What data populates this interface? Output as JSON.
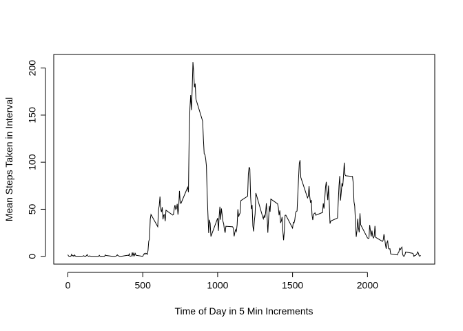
{
  "chart_data": {
    "type": "line",
    "xlabel": "Time of Day in 5 Min Increments",
    "ylabel": "Mean Steps Taken in Interval",
    "color": "#000000",
    "xlim": [
      -94.2,
      2449.2
    ],
    "ylim": [
      -8.25,
      214.4
    ],
    "xticks": [
      0,
      500,
      1000,
      1500,
      2000
    ],
    "yticks": [
      0,
      50,
      100,
      150,
      200
    ],
    "x": [
      0,
      5,
      10,
      15,
      20,
      25,
      30,
      35,
      40,
      45,
      50,
      55,
      100,
      105,
      110,
      115,
      120,
      125,
      130,
      135,
      140,
      145,
      150,
      155,
      200,
      205,
      210,
      215,
      220,
      225,
      230,
      235,
      240,
      245,
      250,
      255,
      300,
      305,
      310,
      315,
      320,
      325,
      330,
      335,
      340,
      345,
      350,
      355,
      400,
      405,
      410,
      415,
      420,
      425,
      430,
      435,
      440,
      445,
      450,
      455,
      500,
      505,
      510,
      515,
      520,
      525,
      530,
      535,
      540,
      545,
      550,
      555,
      600,
      605,
      610,
      615,
      620,
      625,
      630,
      635,
      640,
      645,
      650,
      655,
      700,
      705,
      710,
      715,
      720,
      725,
      730,
      735,
      740,
      745,
      750,
      755,
      800,
      805,
      810,
      815,
      820,
      825,
      830,
      835,
      840,
      845,
      850,
      855,
      900,
      905,
      910,
      915,
      920,
      925,
      930,
      935,
      940,
      945,
      950,
      955,
      1000,
      1005,
      1010,
      1015,
      1020,
      1025,
      1030,
      1035,
      1040,
      1045,
      1050,
      1055,
      1100,
      1105,
      1110,
      1115,
      1120,
      1125,
      1130,
      1135,
      1140,
      1145,
      1150,
      1155,
      1200,
      1205,
      1210,
      1215,
      1220,
      1225,
      1230,
      1235,
      1240,
      1245,
      1250,
      1255,
      1300,
      1305,
      1310,
      1315,
      1320,
      1325,
      1330,
      1335,
      1340,
      1345,
      1350,
      1355,
      1400,
      1405,
      1410,
      1415,
      1420,
      1425,
      1430,
      1435,
      1440,
      1445,
      1450,
      1455,
      1500,
      1505,
      1510,
      1515,
      1520,
      1525,
      1530,
      1535,
      1540,
      1545,
      1550,
      1555,
      1600,
      1605,
      1610,
      1615,
      1620,
      1625,
      1630,
      1635,
      1640,
      1645,
      1650,
      1655,
      1700,
      1705,
      1710,
      1715,
      1720,
      1725,
      1730,
      1735,
      1740,
      1745,
      1750,
      1755,
      1800,
      1805,
      1810,
      1815,
      1820,
      1825,
      1830,
      1835,
      1840,
      1845,
      1850,
      1855,
      1900,
      1905,
      1910,
      1915,
      1920,
      1925,
      1930,
      1935,
      1940,
      1945,
      1950,
      1955,
      2000,
      2005,
      2010,
      2015,
      2020,
      2025,
      2030,
      2035,
      2040,
      2045,
      2050,
      2055,
      2100,
      2105,
      2110,
      2115,
      2120,
      2125,
      2130,
      2135,
      2140,
      2145,
      2150,
      2155,
      2200,
      2205,
      2210,
      2215,
      2220,
      2225,
      2230,
      2235,
      2240,
      2245,
      2250,
      2255,
      2300,
      2305,
      2310,
      2315,
      2320,
      2325,
      2330,
      2335,
      2340,
      2345,
      2350,
      2355
    ],
    "values": [
      1.7,
      0.3,
      0.1,
      0.2,
      0.1,
      2.1,
      0.5,
      0.9,
      0,
      1.5,
      0.3,
      0.1,
      0.3,
      0.7,
      0.2,
      0.3,
      0,
      1.1,
      1.8,
      0.2,
      0.2,
      0.4,
      0.3,
      0,
      0,
      0,
      1.1,
      0,
      0,
      0.1,
      0,
      0.2,
      0,
      0,
      1.5,
      0.9,
      0,
      0,
      0,
      0,
      0.2,
      0.6,
      1.6,
      0.6,
      0.5,
      0.1,
      0,
      0,
      1.2,
      0.9,
      2.6,
      0,
      0.3,
      0.4,
      4.1,
      0.7,
      3.5,
      0.8,
      3.1,
      1.1,
      0,
      1.6,
      3,
      2.2,
      3.3,
      3,
      2.1,
      6,
      16,
      18.3,
      39.5,
      44.5,
      31.5,
      49.3,
      53.8,
      63.5,
      50,
      47.1,
      52.2,
      39.3,
      44,
      44.2,
      37.4,
      49,
      43.8,
      44.4,
      50.5,
      54.5,
      49.9,
      51,
      55.7,
      44.3,
      52.3,
      69.5,
      57.8,
      56.2,
      73.4,
      68.2,
      129.4,
      157.5,
      171.2,
      155.4,
      177.3,
      206.2,
      195.9,
      179.6,
      183.4,
      167,
      143.5,
      124,
      109.1,
      108.1,
      103.7,
      95.96,
      66.2,
      45.2,
      24.8,
      38.8,
      35,
      21.1,
      40.6,
      26.98,
      42.4,
      52.7,
      38.9,
      50.8,
      44.3,
      37.4,
      34.7,
      28.3,
      25.1,
      31.9,
      31.4,
      29.7,
      21.3,
      25.5,
      28.4,
      26.5,
      33.4,
      49.98,
      42,
      44.6,
      46,
      59.2,
      63.9,
      87.7,
      94.8,
      92.8,
      63.4,
      50.2,
      54.5,
      32.4,
      26.5,
      37.7,
      45.1,
      67.3,
      42.3,
      39.9,
      43.3,
      40.98,
      46.2,
      56.4,
      42.8,
      25.1,
      39.97,
      53.5,
      47.3,
      60.8,
      55.8,
      51.96,
      43.6,
      48.7,
      35.5,
      37.5,
      41.8,
      27.5,
      17.1,
      26.1,
      43.6,
      43.8,
      30,
      36.1,
      35.5,
      38.8,
      45.96,
      47.8,
      48.1,
      65.3,
      82.9,
      98.7,
      102.1,
      83.96,
      62.1,
      64.1,
      74.5,
      63.2,
      56.9,
      59.8,
      43.9,
      38.6,
      44.7,
      45.5,
      46.2,
      43.7,
      46.6,
      56.3,
      50.7,
      61.2,
      73.4,
      79.1,
      68.9,
      59.7,
      75.1,
      56.5,
      34.8,
      37.5,
      40.7,
      58,
      74.7,
      85.3,
      59.3,
      67.8,
      77.7,
      74.2,
      85.3,
      99.5,
      86.6,
      85.6,
      84.9,
      77.8,
      58,
      53.4,
      36.3,
      20.7,
      27.4,
      40,
      30.2,
      25.5,
      45.7,
      33.5,
      19.6,
      19,
      19.3,
      33.3,
      26.8,
      21.2,
      27.3,
      21.3,
      19.5,
      21.3,
      32.3,
      20.2,
      15.9,
      17.2,
      23.5,
      19.2,
      12.5,
      8,
      14.7,
      16.3,
      8.7,
      7.8,
      8.1,
      2.6,
      1.5,
      3.7,
      4.8,
      8.5,
      7.1,
      8.7,
      9.8,
      2.2,
      0.3,
      0.1,
      1.6,
      4.6,
      3.3,
      2.8,
      0,
      0.8,
      0.96,
      1.6,
      2.6,
      4.7,
      3.3,
      0.6,
      0.2,
      1.1
    ]
  }
}
